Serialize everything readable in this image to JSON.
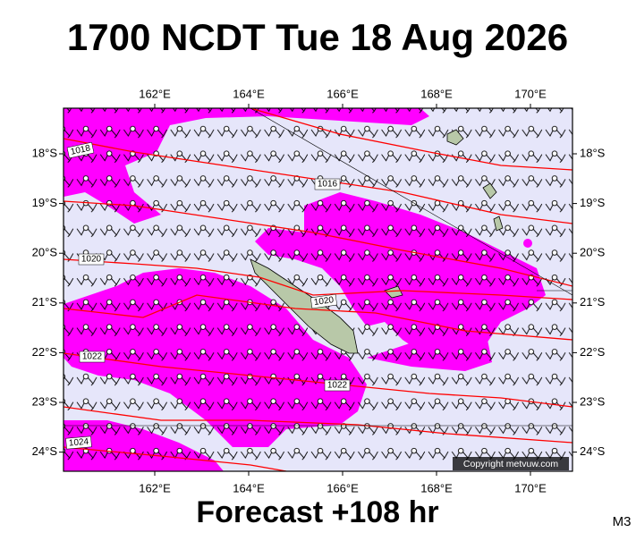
{
  "map": {
    "title": "1700 NCDT Tue 18 Aug 2026",
    "footer": "Forecast +108 hr",
    "model": "M3",
    "lon_labels": [
      "162°E",
      "164°E",
      "166°E",
      "168°E",
      "170°E"
    ],
    "lat_labels": [
      "18°S",
      "19°S",
      "20°S",
      "21°S",
      "22°S",
      "23°S",
      "24°S"
    ],
    "isobar_labels": [
      "1018",
      "1016",
      "1020",
      "1020",
      "1022",
      "1022",
      "1024"
    ],
    "copyright": "Copyright metvuw.com"
  }
}
